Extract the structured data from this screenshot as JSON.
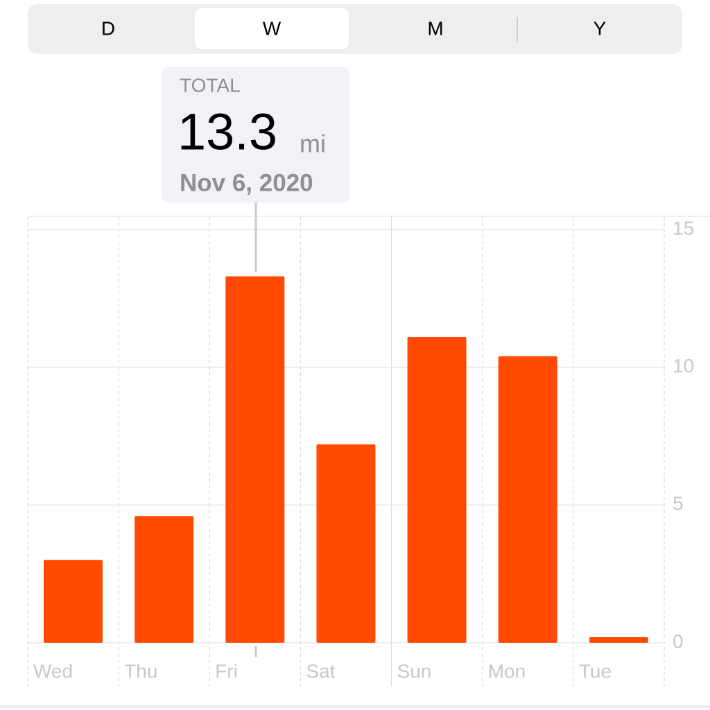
{
  "segments": [
    "D",
    "W",
    "M",
    "Y"
  ],
  "tooltip": {
    "label": "TOTAL",
    "unit": "mi",
    "date": "Nov 6, 2020"
  },
  "chart_data": {
    "type": "bar",
    "categories": [
      "Wed",
      "Thu",
      "Fri",
      "Sat",
      "Sun",
      "Mon",
      "Tue"
    ],
    "values": [
      3.0,
      4.6,
      13.3,
      7.2,
      11.1,
      10.4,
      0.2
    ],
    "color": "#ff4a00",
    "ylim": [
      0,
      15
    ],
    "yticks": [
      0,
      5,
      10,
      15
    ],
    "grid": true
  }
}
